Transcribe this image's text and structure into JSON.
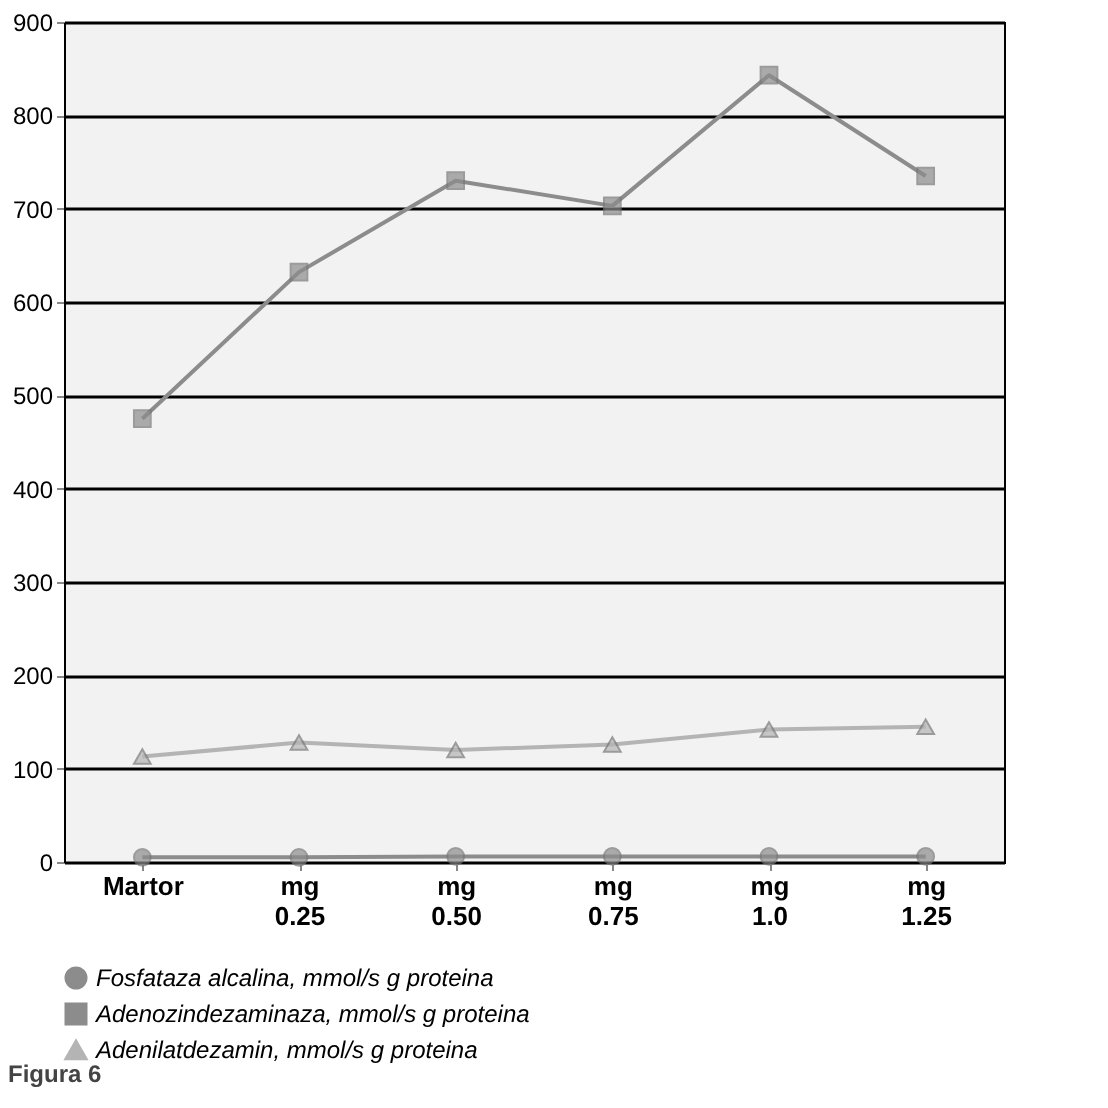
{
  "chart_data": {
    "type": "line",
    "categories": [
      "Martor",
      "mg 0.25",
      "mg 0.50",
      "mg 0.75",
      "mg 1.0",
      "mg 1.25"
    ],
    "series": [
      {
        "name": "Fosfataza alcalina, mmol/s g proteina",
        "color": "#8c8c8c",
        "marker": "circle",
        "values": [
          5,
          5,
          6,
          6,
          6,
          6
        ]
      },
      {
        "name": "Adenozindezaminaza, mmol/s g proteina",
        "color": "#8c8c8c",
        "marker": "square",
        "values": [
          475,
          632,
          730,
          703,
          843,
          735
        ]
      },
      {
        "name": "Adenilatdezamin, mmol/s g proteina",
        "color": "#b4b4b4",
        "marker": "triangle",
        "values": [
          113,
          128,
          120,
          126,
          142,
          145
        ]
      }
    ],
    "ylim": [
      0,
      900
    ],
    "yticks": [
      0,
      100,
      200,
      300,
      400,
      500,
      600,
      700,
      800,
      900
    ],
    "grid": "y",
    "legend": "bottom",
    "annotations": [
      "Figura 6"
    ]
  }
}
